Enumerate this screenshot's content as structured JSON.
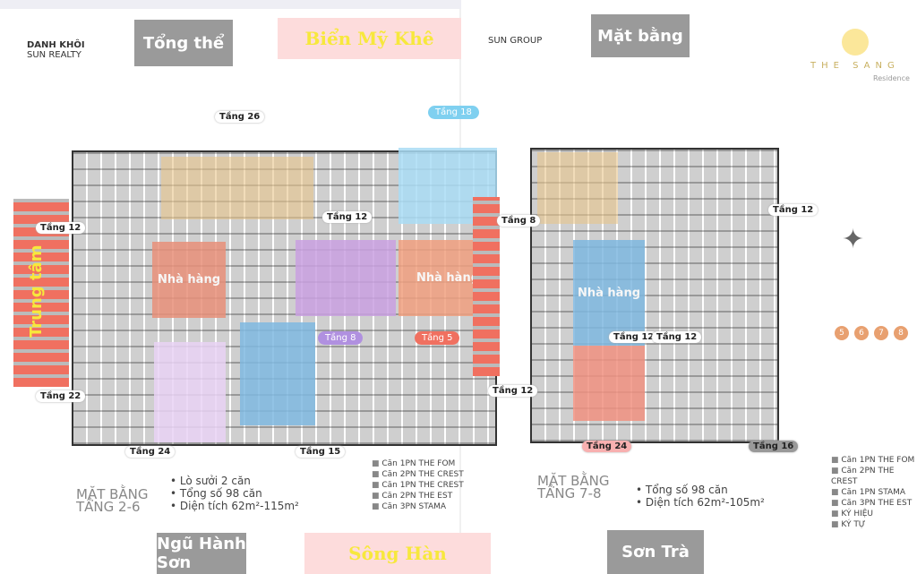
{
  "header": {
    "left_logo": "DANH KHÔI",
    "left_logo_sub": "SUN REALTY",
    "left_title_box": "Tổng thể",
    "right_logo": "SUN GROUP",
    "right_title_box": "Mặt bằng",
    "sea_label": "Biển Mỹ Khê",
    "brand": "THE SANG",
    "brand_sub": "Residence"
  },
  "footer": {
    "left_box": "Ngũ Hành Sơn",
    "river_label": "Sông Hàn",
    "right_box": "Sơn Trà"
  },
  "left_plan": {
    "vertical_label": "Trung tâm",
    "zone_labels": [
      "Nhà hàng",
      "Nhà hàng"
    ],
    "floor_tags": [
      "Tầng 12",
      "Tầng 26",
      "Tầng 12",
      "Tầng 22",
      "Tầng 24",
      "Tầng 15"
    ],
    "pills": [
      "Tầng 18",
      "Tầng 8",
      "Tầng 5"
    ],
    "stats_title": "MẶT BẰNG TẦNG 2-6",
    "stats": [
      {
        "label": "Lò sưởi",
        "value": "2 căn"
      },
      {
        "label": "Tổng số",
        "value": "98 căn"
      },
      {
        "label": "Diện tích",
        "value": "62m²-115m²"
      }
    ],
    "legend": [
      "Căn 1PN THE FOM",
      "Căn 2PN THE CREST",
      "Căn 1PN THE CREST",
      "Căn 2PN THE EST",
      "Căn 3PN STAMA"
    ]
  },
  "right_plan": {
    "zone_labels": [
      "Nhà hàng"
    ],
    "floor_tags": [
      "Tầng 8",
      "Tầng 12",
      "Tầng 12",
      "Tầng 12",
      "Tầng 12",
      "Tầng 24",
      "Tầng 16"
    ],
    "stats_title": "MẶT BẰNG TẦNG 7-8",
    "stats": [
      {
        "label": "Tổng số",
        "value": "98 căn"
      },
      {
        "label": "Diện tích",
        "value": "62m²-105m²"
      }
    ],
    "legend": [
      "Căn 1PN THE FOM",
      "Căn 2PN THE CREST",
      "Căn 1PN STAMA",
      "Căn 3PN THE EST",
      "KÝ HIỆU",
      "KÝ TỰ"
    ],
    "numbers": [
      "5",
      "6",
      "7",
      "8"
    ]
  },
  "colors": {
    "salmon": "#e8907a",
    "purple": "#c9a0e0",
    "cyan": "#a9dcf5",
    "blue": "#7fb8e0",
    "red": "#f07060",
    "tan": "#e8c48a",
    "gray": "#9a9a9a"
  }
}
